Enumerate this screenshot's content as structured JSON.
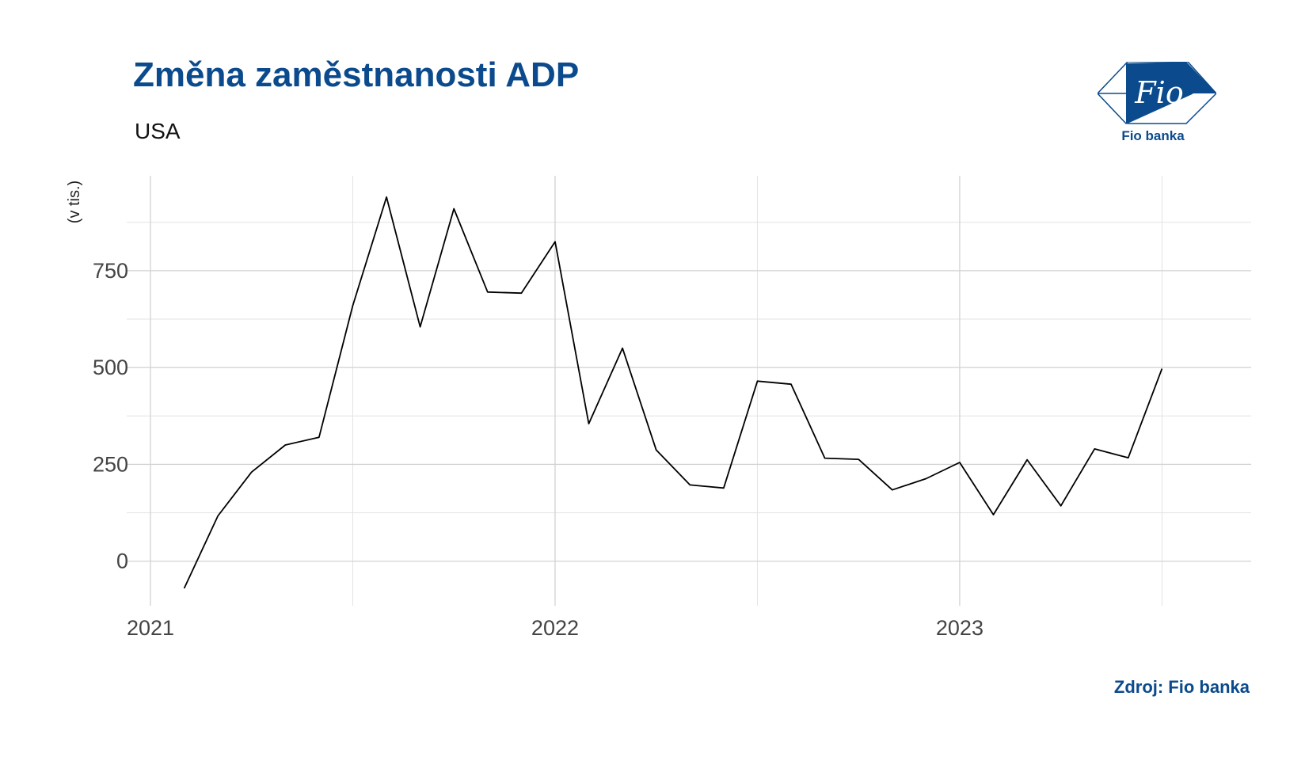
{
  "title": "Změna zaměstnanosti ADP",
  "subtitle": "USA",
  "source": "Zdroj: Fio banka",
  "logo": {
    "brand_text": "Fio",
    "caption": "Fio banka",
    "color": "#0b4a8c"
  },
  "chart_data": {
    "type": "line",
    "ylabel": "(v tis.)",
    "xlabel": "",
    "grid": true,
    "ylim": [
      -115,
      995
    ],
    "yticks": [
      0,
      250,
      500,
      750
    ],
    "xlim": [
      "2021-01",
      "2023-08"
    ],
    "xticks": [
      {
        "date": "2021-01",
        "label": "2021"
      },
      {
        "date": "2022-01",
        "label": "2022"
      },
      {
        "date": "2023-01",
        "label": "2023"
      }
    ],
    "line_color": "#000000",
    "series": [
      {
        "x": [
          "2021-02",
          "2021-03",
          "2021-04",
          "2021-05",
          "2021-06",
          "2021-07",
          "2021-08",
          "2021-09",
          "2021-10",
          "2021-11",
          "2021-12",
          "2022-01",
          "2022-02",
          "2022-03",
          "2022-04",
          "2022-05",
          "2022-06",
          "2022-07",
          "2022-08",
          "2022-09",
          "2022-10",
          "2022-11",
          "2022-12",
          "2023-01",
          "2023-02",
          "2023-03",
          "2023-04",
          "2023-05",
          "2023-06",
          "2023-07"
        ],
        "values": [
          -70,
          117,
          230,
          300,
          320,
          660,
          940,
          605,
          910,
          695,
          692,
          825,
          355,
          550,
          287,
          197,
          189,
          465,
          457,
          266,
          263,
          184,
          213,
          255,
          120,
          262,
          143,
          290,
          267,
          497
        ]
      }
    ]
  }
}
